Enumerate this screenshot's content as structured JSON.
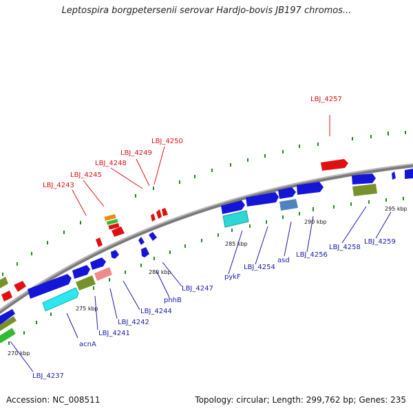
{
  "title": "Leptospira borgpetersenii serovar Hardjo-bovis JB197 chromos...",
  "footer": {
    "accession": "Accession: NC_008511",
    "summary": "Topology: circular; Length: 299,762 bp; Genes: 235"
  },
  "scale_labels": {
    "k270": "270 kbp",
    "k275": "275 kbp",
    "k280": "280 kbp",
    "k285": "285 kbp",
    "k290": "290 kbp",
    "k295": "295 kbp"
  },
  "gene_labels": {
    "LBJ_4243": "LBJ_4243",
    "LBJ_4245": "LBJ_4245",
    "LBJ_4248": "LBJ_4248",
    "LBJ_4249": "LBJ_4249",
    "LBJ_4250": "LBJ_4250",
    "LBJ_4257": "LBJ_4257",
    "LBJ_4237": "LBJ_4237",
    "acnA": "acnA",
    "LBJ_4241": "LBJ_4241",
    "LBJ_4242": "LBJ_4242",
    "LBJ_4244": "LBJ_4244",
    "phhB": "phhB",
    "LBJ_4247": "LBJ_4247",
    "pykF": "pykF",
    "LBJ_4254": "LBJ_4254",
    "asd": "asd",
    "LBJ_4256": "LBJ_4256",
    "LBJ_4258": "LBJ_4258",
    "LBJ_4259": "LBJ_4259"
  },
  "colors": {
    "backbone": "#888888",
    "forward_gene": "#1515d8",
    "reverse_gene": "#e01010",
    "tick": "#1a8a1a"
  }
}
